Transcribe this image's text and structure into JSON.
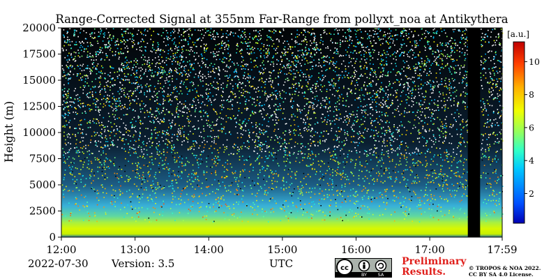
{
  "chart_data": {
    "type": "heatmap",
    "title": "Range-Corrected Signal at 355nm Far-Range from pollyxt_noa at Antikythera",
    "xlabel": "",
    "ylabel": "Height (m)",
    "x_ticks": [
      "12:00",
      "13:00",
      "14:00",
      "15:00",
      "16:00",
      "17:00",
      "17:59"
    ],
    "x_range": [
      "12:00",
      "17:59"
    ],
    "y_ticks": [
      0,
      2500,
      5000,
      7500,
      10000,
      12500,
      15000,
      17500,
      20000
    ],
    "ylim": [
      0,
      20000
    ],
    "colorbar": {
      "label": "[a.u.]",
      "ticks": [
        2,
        4,
        6,
        8,
        10
      ],
      "range": [
        0.2,
        11.2
      ],
      "colormap": "jet"
    },
    "grid": false,
    "no_data_interval": [
      "17:31",
      "17:41"
    ],
    "signal_profile": [
      {
        "height": 0,
        "value": 2.0
      },
      {
        "height": 200,
        "value": 6.8
      },
      {
        "height": 600,
        "value": 6.5
      },
      {
        "height": 1200,
        "value": 6.0
      },
      {
        "height": 1800,
        "value": 5.1
      },
      {
        "height": 2500,
        "value": 4.2
      },
      {
        "height": 3500,
        "value": 3.2
      },
      {
        "height": 5000,
        "value": 2.6
      }
    ]
  },
  "footer": {
    "date": "2022-07-30",
    "version": "Version: 3.5",
    "timezone": "UTC",
    "preliminary_line1": "Preliminary",
    "preliminary_line2": "Results.",
    "copyright_line1": "© TROPOS & NOA 2022.",
    "copyright_line2": "CC BY SA 4.0 License.",
    "license_badge": [
      "BY",
      "SA"
    ]
  }
}
